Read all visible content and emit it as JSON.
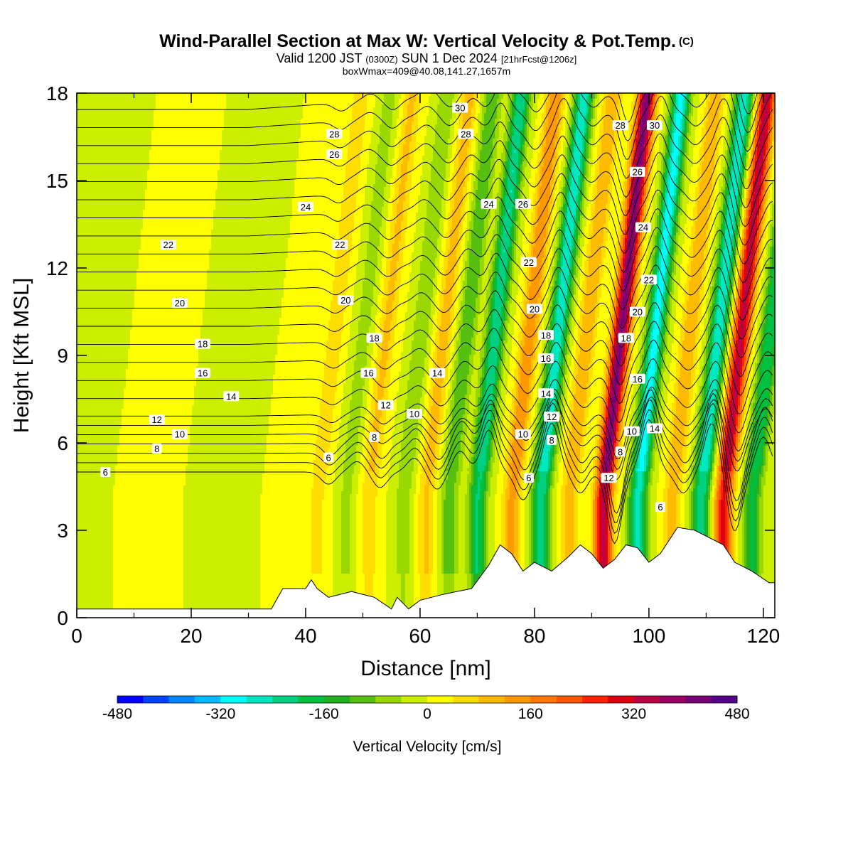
{
  "title": {
    "main": "Wind-Parallel Section at Max W: Vertical Velocity & Pot.Temp.",
    "copyright": "(C)",
    "valid_a": "Valid 1200 JST",
    "valid_utc": "(0300Z)",
    "valid_b": "SUN 1 Dec 2024",
    "forecast": "[21hrFcst@1206z]",
    "box": "boxWmax=409@40.08,141.27,1657m"
  },
  "chart_data": {
    "type": "heatmap",
    "xlabel": "Distance [nm]",
    "ylabel": "Height [Kft MSL]",
    "xlim": [
      0,
      122
    ],
    "ylim": [
      0,
      18
    ],
    "xticks": [
      0,
      20,
      40,
      60,
      80,
      100,
      120
    ],
    "yticks": [
      0,
      3,
      6,
      9,
      12,
      15,
      18
    ],
    "colorbar": {
      "label": "Vertical Velocity [cm/s]",
      "range": [
        -480,
        480
      ],
      "step": 40,
      "tick_values": [
        -480,
        -320,
        -160,
        0,
        160,
        320,
        480
      ],
      "tick_labels": [
        "-480",
        "-320",
        "-160",
        "0",
        "160",
        "320",
        "480"
      ],
      "colors": [
        "#0000ff",
        "#0044ff",
        "#0088ff",
        "#00bbff",
        "#00ffff",
        "#00e8c0",
        "#00d080",
        "#00c040",
        "#22b022",
        "#55c010",
        "#99d800",
        "#ccee00",
        "#ffff00",
        "#ffdd00",
        "#ffbb00",
        "#ff9900",
        "#ff7700",
        "#ff5500",
        "#ff2200",
        "#dd0011",
        "#bb0044",
        "#990066",
        "#770077",
        "#550088"
      ]
    },
    "w_bands": [
      {
        "x": 3,
        "w": -30
      },
      {
        "x": 12,
        "w": 10
      },
      {
        "x": 30,
        "w": -40
      },
      {
        "x": 37,
        "w": 20
      },
      {
        "x": 44,
        "w": 70
      },
      {
        "x": 49,
        "w": -60
      },
      {
        "x": 53,
        "w": 90
      },
      {
        "x": 59,
        "w": -80
      },
      {
        "x": 63,
        "w": 100
      },
      {
        "x": 67,
        "w": -120
      },
      {
        "x": 72,
        "w": -240
      },
      {
        "x": 78,
        "w": 160
      },
      {
        "x": 83,
        "w": -280
      },
      {
        "x": 88,
        "w": 120
      },
      {
        "x": 94,
        "w": 409
      },
      {
        "x": 100,
        "w": -300
      },
      {
        "x": 106,
        "w": 120
      },
      {
        "x": 111,
        "w": -280
      },
      {
        "x": 115,
        "w": 340
      },
      {
        "x": 120,
        "w": -200
      }
    ],
    "terrain": [
      {
        "x": 0,
        "h": 0.3
      },
      {
        "x": 34,
        "h": 0.3
      },
      {
        "x": 36,
        "h": 1.0
      },
      {
        "x": 40,
        "h": 1.0
      },
      {
        "x": 41,
        "h": 1.3
      },
      {
        "x": 42,
        "h": 1.0
      },
      {
        "x": 44,
        "h": 0.7
      },
      {
        "x": 48,
        "h": 0.9
      },
      {
        "x": 52,
        "h": 0.7
      },
      {
        "x": 55,
        "h": 0.3
      },
      {
        "x": 56,
        "h": 0.7
      },
      {
        "x": 58,
        "h": 0.3
      },
      {
        "x": 60,
        "h": 0.6
      },
      {
        "x": 64,
        "h": 0.8
      },
      {
        "x": 69,
        "h": 1.0
      },
      {
        "x": 72,
        "h": 1.8
      },
      {
        "x": 74,
        "h": 2.5
      },
      {
        "x": 76,
        "h": 2.2
      },
      {
        "x": 78,
        "h": 1.6
      },
      {
        "x": 80,
        "h": 1.9
      },
      {
        "x": 83,
        "h": 1.6
      },
      {
        "x": 86,
        "h": 2.1
      },
      {
        "x": 88,
        "h": 2.5
      },
      {
        "x": 90,
        "h": 2.2
      },
      {
        "x": 92,
        "h": 1.7
      },
      {
        "x": 94,
        "h": 2.0
      },
      {
        "x": 96,
        "h": 2.5
      },
      {
        "x": 98,
        "h": 2.4
      },
      {
        "x": 100,
        "h": 1.9
      },
      {
        "x": 102,
        "h": 2.2
      },
      {
        "x": 105,
        "h": 3.1
      },
      {
        "x": 108,
        "h": 3.0
      },
      {
        "x": 110,
        "h": 2.8
      },
      {
        "x": 113,
        "h": 2.5
      },
      {
        "x": 115,
        "h": 1.9
      },
      {
        "x": 118,
        "h": 1.6
      },
      {
        "x": 121,
        "h": 1.2
      },
      {
        "x": 122,
        "h": 1.2
      }
    ],
    "theta_levels": [
      6,
      7,
      8,
      9,
      10,
      11,
      12,
      13,
      14,
      15,
      16,
      17,
      18,
      19,
      20,
      21,
      22,
      23,
      24,
      25,
      26,
      27,
      28,
      29,
      30
    ],
    "contour_labels": [
      {
        "x": 5,
        "y": 5.0,
        "text": "6"
      },
      {
        "x": 14,
        "y": 5.8,
        "text": "8"
      },
      {
        "x": 18,
        "y": 6.3,
        "text": "10"
      },
      {
        "x": 14,
        "y": 6.8,
        "text": "12"
      },
      {
        "x": 27,
        "y": 7.6,
        "text": "14"
      },
      {
        "x": 22,
        "y": 8.4,
        "text": "16"
      },
      {
        "x": 22,
        "y": 9.4,
        "text": "18"
      },
      {
        "x": 18,
        "y": 10.8,
        "text": "20"
      },
      {
        "x": 16,
        "y": 12.8,
        "text": "22"
      },
      {
        "x": 40,
        "y": 14.1,
        "text": "24"
      },
      {
        "x": 44,
        "y": 5.5,
        "text": "6"
      },
      {
        "x": 52,
        "y": 6.2,
        "text": "8"
      },
      {
        "x": 54,
        "y": 7.3,
        "text": "12"
      },
      {
        "x": 59,
        "y": 7.0,
        "text": "10"
      },
      {
        "x": 51,
        "y": 8.4,
        "text": "16"
      },
      {
        "x": 52,
        "y": 9.6,
        "text": "18"
      },
      {
        "x": 63,
        "y": 8.4,
        "text": "14"
      },
      {
        "x": 47,
        "y": 10.9,
        "text": "20"
      },
      {
        "x": 46,
        "y": 12.8,
        "text": "22"
      },
      {
        "x": 45,
        "y": 15.9,
        "text": "26"
      },
      {
        "x": 45,
        "y": 16.6,
        "text": "28"
      },
      {
        "x": 67,
        "y": 17.5,
        "text": "30"
      },
      {
        "x": 68,
        "y": 16.6,
        "text": "28"
      },
      {
        "x": 72,
        "y": 14.2,
        "text": "24"
      },
      {
        "x": 78,
        "y": 14.2,
        "text": "26"
      },
      {
        "x": 79,
        "y": 12.2,
        "text": "22"
      },
      {
        "x": 80,
        "y": 10.6,
        "text": "20"
      },
      {
        "x": 82,
        "y": 9.7,
        "text": "18"
      },
      {
        "x": 82,
        "y": 8.9,
        "text": "16"
      },
      {
        "x": 82,
        "y": 7.7,
        "text": "14"
      },
      {
        "x": 83,
        "y": 6.9,
        "text": "12"
      },
      {
        "x": 78,
        "y": 6.3,
        "text": "10"
      },
      {
        "x": 83,
        "y": 6.1,
        "text": "8"
      },
      {
        "x": 79,
        "y": 4.8,
        "text": "6"
      },
      {
        "x": 95,
        "y": 16.9,
        "text": "28"
      },
      {
        "x": 101,
        "y": 16.9,
        "text": "30"
      },
      {
        "x": 98,
        "y": 15.3,
        "text": "26"
      },
      {
        "x": 99,
        "y": 13.4,
        "text": "24"
      },
      {
        "x": 100,
        "y": 11.6,
        "text": "22"
      },
      {
        "x": 98,
        "y": 10.5,
        "text": "20"
      },
      {
        "x": 96,
        "y": 9.6,
        "text": "18"
      },
      {
        "x": 98,
        "y": 8.2,
        "text": "16"
      },
      {
        "x": 101,
        "y": 6.5,
        "text": "14"
      },
      {
        "x": 97,
        "y": 6.4,
        "text": "10"
      },
      {
        "x": 95,
        "y": 5.7,
        "text": "8"
      },
      {
        "x": 93,
        "y": 4.8,
        "text": "12"
      },
      {
        "x": 102,
        "y": 3.8,
        "text": "6"
      }
    ]
  }
}
